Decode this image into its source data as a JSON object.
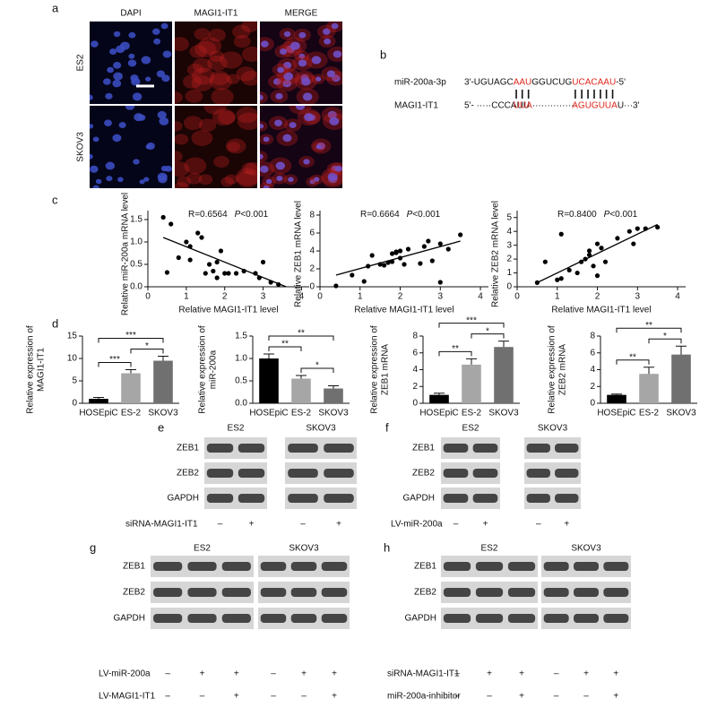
{
  "panels": {
    "a": {
      "label": "a",
      "columns": [
        "DAPI",
        "MAGI1-IT1",
        "MERGE"
      ],
      "rows": [
        "ES2",
        "SKOV3"
      ]
    },
    "b": {
      "label": "b",
      "mir_name": "miR-200a-3p",
      "mir_seq": [
        "3'-UGUAGC",
        "AAU",
        "GGUCUG",
        "UCACAAU",
        "-5'"
      ],
      "target_name": "MAGI1-IT1",
      "target_seq": [
        "5'- ·····CCCAUU",
        "UUA",
        "···············",
        "AGUGUUA",
        "U···3'"
      ]
    },
    "c": {
      "label": "c"
    },
    "d": {
      "label": "d"
    },
    "e": {
      "label": "e",
      "groups": [
        "ES2",
        "SKOV3"
      ],
      "rows": [
        "ZEB1",
        "ZEB2",
        "GAPDH"
      ],
      "treatments": [
        {
          "name": "siRNA-MAGI1-IT1",
          "signs": [
            "–",
            "+",
            "–",
            "+"
          ]
        }
      ]
    },
    "f": {
      "label": "f",
      "groups": [
        "ES2",
        "SKOV3"
      ],
      "rows": [
        "ZEB1",
        "ZEB2",
        "GAPDH"
      ],
      "treatments": [
        {
          "name": "LV-miR-200a",
          "signs": [
            "–",
            "+",
            "–",
            "+"
          ]
        }
      ]
    },
    "g": {
      "label": "g",
      "groups": [
        "ES2",
        "SKOV3"
      ],
      "rows": [
        "ZEB1",
        "ZEB2",
        "GAPDH"
      ],
      "treatments": [
        {
          "name": "LV-miR-200a",
          "signs": [
            "–",
            "+",
            "+",
            "–",
            "+",
            "+"
          ]
        },
        {
          "name": "LV-MAGI1-IT1",
          "signs": [
            "–",
            "–",
            "+",
            "–",
            "–",
            "+"
          ]
        }
      ]
    },
    "h": {
      "label": "h",
      "groups": [
        "ES2",
        "SKOV3"
      ],
      "rows": [
        "ZEB1",
        "ZEB2",
        "GAPDH"
      ],
      "treatments": [
        {
          "name": "siRNA-MAGI1-IT1",
          "signs": [
            "–",
            "+",
            "+",
            "–",
            "+",
            "+"
          ]
        },
        {
          "name": "miR-200a-inhibitor",
          "signs": [
            "–",
            "–",
            "+",
            "–",
            "–",
            "+"
          ]
        }
      ]
    }
  },
  "chart_data": [
    {
      "type": "scatter",
      "annotation": "R=0.6564",
      "p_symbol": "P",
      "p_value": "<0.001",
      "xlabel": "Relative MAGI1-IT1 level",
      "ylabel": "Relative miR-200a mRNA level",
      "color": "#000000",
      "x": [
        0.4,
        0.5,
        0.6,
        0.8,
        1.0,
        1.1,
        1.1,
        1.3,
        1.4,
        1.5,
        1.6,
        1.7,
        1.8,
        1.8,
        1.9,
        2.0,
        2.1,
        2.3,
        2.5,
        2.8,
        2.9,
        3.0,
        3.2,
        3.4
      ],
      "values": [
        1.55,
        0.32,
        1.4,
        0.65,
        1.0,
        0.6,
        0.9,
        1.2,
        1.1,
        0.3,
        0.5,
        0.35,
        0.55,
        0.2,
        0.8,
        0.3,
        0.3,
        0.3,
        0.35,
        0.3,
        0.2,
        0.55,
        0.1,
        0.05
      ],
      "trendline": {
        "x": [
          0.4,
          3.6
        ],
        "y": [
          1.1,
          0.0
        ]
      },
      "xlim": [
        0,
        4.2
      ],
      "ylim": [
        0,
        1.7
      ],
      "xticks": [
        0,
        1,
        2,
        3,
        4
      ],
      "yticks": [
        {
          "value": 0,
          "label": "0.0"
        },
        {
          "value": 0.5,
          "label": "0.5"
        },
        {
          "value": 1,
          "label": "1.0"
        },
        {
          "value": 1.5,
          "label": "1.5"
        }
      ]
    },
    {
      "type": "scatter",
      "annotation": "R=0.6664",
      "p_symbol": "P",
      "p_value": "<0.001",
      "xlabel": "Relative MAGI1-IT1 level",
      "ylabel": "Relative ZEB1 mRNA level",
      "color": "#000000",
      "x": [
        0.4,
        0.8,
        1.1,
        1.2,
        1.3,
        1.5,
        1.6,
        1.7,
        1.8,
        1.8,
        1.9,
        1.9,
        2.0,
        2.0,
        2.1,
        2.2,
        2.5,
        2.6,
        2.7,
        2.8,
        3.0,
        3.0,
        3.2,
        3.5
      ],
      "values": [
        0.1,
        1.3,
        0.6,
        2.3,
        3.5,
        2.5,
        2.4,
        2.7,
        2.8,
        3.7,
        3.8,
        3.9,
        3.2,
        4.0,
        2.5,
        4.2,
        2.6,
        4.5,
        5.1,
        2.9,
        4.8,
        0.5,
        4.2,
        5.8
      ],
      "trendline": {
        "x": [
          0.4,
          3.5
        ],
        "y": [
          1.3,
          5.1
        ]
      },
      "xlim": [
        0,
        4.2
      ],
      "ylim": [
        0,
        8.5
      ],
      "xticks": [
        0,
        1,
        2,
        3,
        4
      ],
      "yticks": [
        0,
        2,
        4,
        6,
        8
      ]
    },
    {
      "type": "scatter",
      "annotation": "R=0.8400",
      "p_symbol": "P",
      "p_value": "<0.001",
      "xlabel": "Relative MAGI1-IT1 level",
      "ylabel": "Relative ZEB2 mRNA level",
      "color": "#000000",
      "x": [
        0.5,
        0.7,
        1.0,
        1.1,
        1.1,
        1.3,
        1.5,
        1.6,
        1.7,
        1.8,
        1.8,
        1.9,
        2.0,
        2.0,
        2.1,
        2.2,
        2.5,
        2.8,
        2.9,
        3.0,
        3.2,
        3.5
      ],
      "values": [
        0.3,
        1.8,
        0.5,
        3.8,
        0.6,
        1.2,
        1.0,
        1.8,
        2.0,
        2.6,
        2.3,
        1.5,
        3.1,
        0.8,
        2.8,
        1.8,
        3.5,
        4.0,
        3.1,
        4.2,
        4.2,
        4.3
      ],
      "trendline": {
        "x": [
          0.5,
          3.5
        ],
        "y": [
          0.3,
          4.5
        ]
      },
      "xlim": [
        0,
        4.2
      ],
      "ylim": [
        0,
        5.5
      ],
      "xticks": [
        0,
        1,
        2,
        3,
        4
      ],
      "yticks": [
        0,
        1,
        2,
        3,
        4,
        5
      ]
    },
    {
      "type": "bar",
      "ylabel": [
        "Relative expression of",
        "MAGI1-IT1"
      ],
      "categories": [
        "HOSEpiC",
        "ES-2",
        "SKOV3"
      ],
      "values": [
        1.0,
        6.7,
        9.5
      ],
      "errors": [
        0.3,
        0.8,
        1.0
      ],
      "colors": [
        "#000000",
        "#a6a6a6",
        "#707070"
      ],
      "ylim": [
        0,
        15
      ],
      "yticks": [
        0,
        5,
        10,
        15
      ],
      "comparisons": [
        {
          "between": [
            0,
            1
          ],
          "label": "***"
        },
        {
          "between": [
            0,
            2
          ],
          "label": "***"
        },
        {
          "between": [
            1,
            2
          ],
          "label": "*"
        }
      ]
    },
    {
      "type": "bar",
      "ylabel": [
        "Relative expression of",
        "miR-200a"
      ],
      "categories": [
        "HOSEpiC",
        "ES-2",
        "SKOV3"
      ],
      "values": [
        1.0,
        0.55,
        0.33
      ],
      "errors": [
        0.1,
        0.07,
        0.06
      ],
      "colors": [
        "#000000",
        "#a6a6a6",
        "#707070"
      ],
      "ylim": [
        0,
        1.5
      ],
      "yticks": [
        {
          "value": 0,
          "label": "0.0"
        },
        {
          "value": 0.5,
          "label": "0.5"
        },
        {
          "value": 1,
          "label": "1.0"
        },
        {
          "value": 1.5,
          "label": "1.5"
        }
      ],
      "comparisons": [
        {
          "between": [
            0,
            1
          ],
          "label": "**"
        },
        {
          "between": [
            0,
            2
          ],
          "label": "**"
        },
        {
          "between": [
            1,
            2
          ],
          "label": "*"
        }
      ]
    },
    {
      "type": "bar",
      "ylabel": [
        "Relative expression of",
        "ZEB1 mRNA"
      ],
      "categories": [
        "HOSEpiC",
        "ES-2",
        "SKOV3"
      ],
      "values": [
        1.0,
        4.6,
        6.7
      ],
      "errors": [
        0.2,
        0.7,
        0.7
      ],
      "colors": [
        "#000000",
        "#a6a6a6",
        "#707070"
      ],
      "ylim": [
        0,
        8
      ],
      "yticks": [
        0,
        2,
        4,
        6,
        8
      ],
      "comparisons": [
        {
          "between": [
            0,
            1
          ],
          "label": "**"
        },
        {
          "between": [
            0,
            2
          ],
          "label": "***"
        },
        {
          "between": [
            1,
            2
          ],
          "label": "*"
        }
      ]
    },
    {
      "type": "bar",
      "ylabel": [
        "Relative expression of",
        "ZEB2 mRNA"
      ],
      "categories": [
        "HOSEpiC",
        "ES-2",
        "SKOV3"
      ],
      "values": [
        1.0,
        3.5,
        5.8
      ],
      "errors": [
        0.1,
        0.8,
        1.0
      ],
      "colors": [
        "#000000",
        "#a6a6a6",
        "#707070"
      ],
      "ylim": [
        0,
        8
      ],
      "yticks": [
        0,
        2,
        4,
        6,
        8
      ],
      "comparisons": [
        {
          "between": [
            0,
            1
          ],
          "label": "**"
        },
        {
          "between": [
            0,
            2
          ],
          "label": "**"
        },
        {
          "between": [
            1,
            2
          ],
          "label": "*"
        }
      ]
    }
  ]
}
